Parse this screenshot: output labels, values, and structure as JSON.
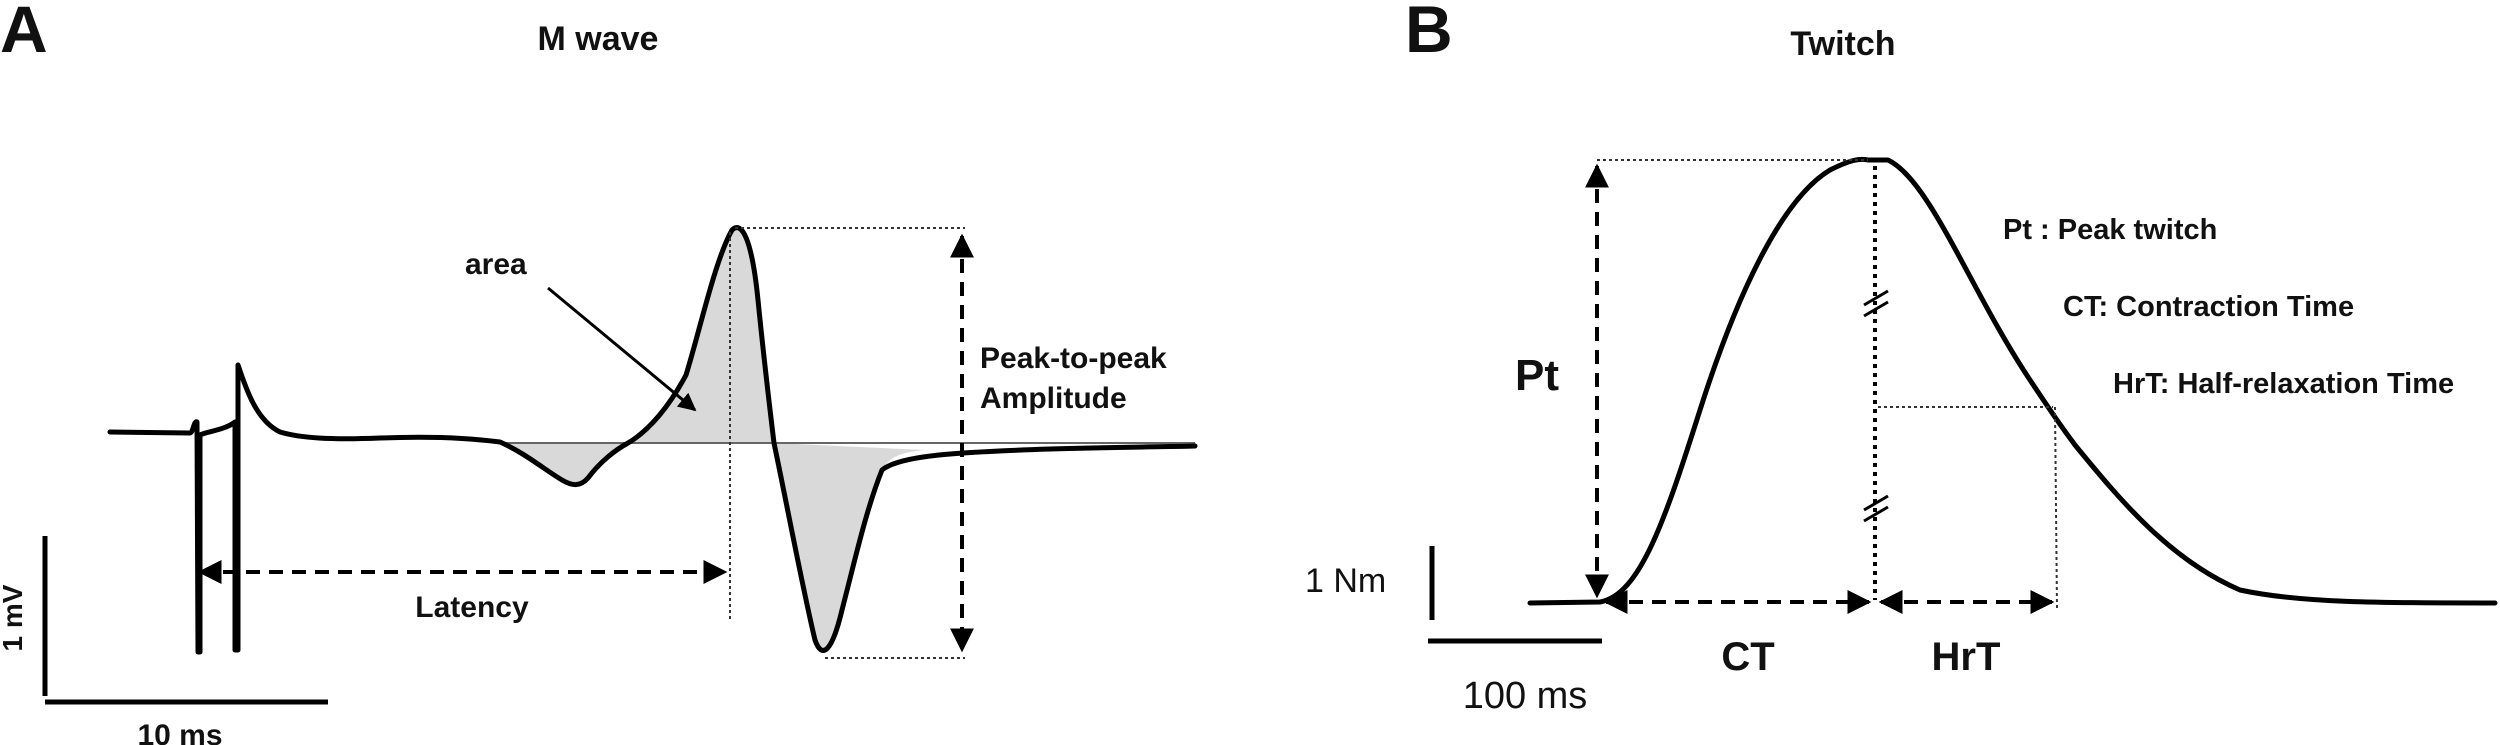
{
  "panel_a": {
    "letter": "A",
    "title": "M wave",
    "area_label": "area",
    "amplitude_line1": "Peak-to-peak",
    "amplitude_line2": "Amplitude",
    "latency_label": "Latency",
    "scale_v": "1 mV",
    "scale_t": "10 ms"
  },
  "panel_b": {
    "letter": "B",
    "title": "Twitch",
    "pt_label": "Pt",
    "ct_label": "CT",
    "hrt_label": "HrT",
    "legend": [
      "Pt : Peak twitch",
      "CT: Contraction Time",
      "HrT: Half-relaxation Time"
    ],
    "scale_force": "1 Nm",
    "scale_t": "100 ms"
  },
  "colors": {
    "trace": "#000000",
    "area_fill": "#d9d9d9"
  }
}
